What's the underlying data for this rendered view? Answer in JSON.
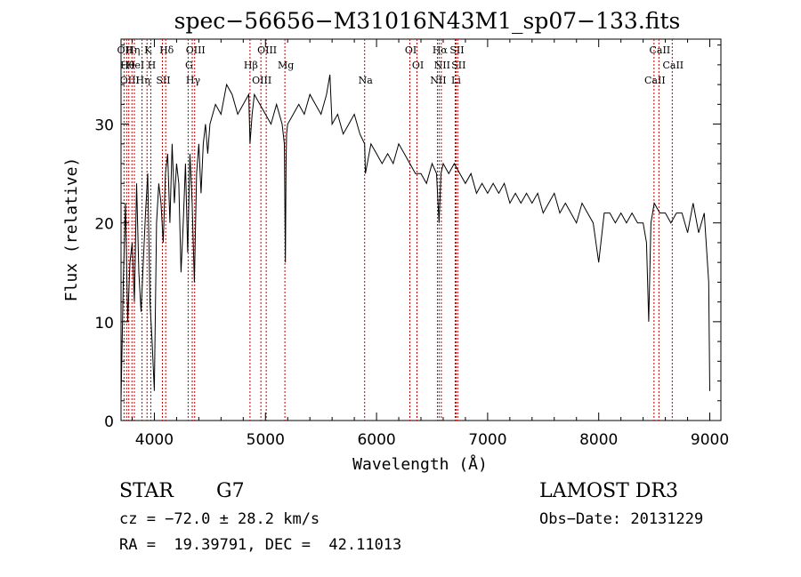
{
  "chart_data": {
    "type": "line",
    "title": "spec−56656−M31016N43M1_sp07−133.fits",
    "xlabel": "Wavelength (Å)",
    "ylabel": "Flux (relative)",
    "xlim": [
      3700,
      9100
    ],
    "ylim": [
      0,
      38.6
    ],
    "xticks": [
      4000,
      5000,
      6000,
      7000,
      8000,
      9000
    ],
    "yticks": [
      0,
      10,
      20,
      30
    ],
    "grid": false,
    "series": [
      {
        "name": "flux",
        "x": [
          3700,
          3720,
          3740,
          3760,
          3780,
          3800,
          3820,
          3840,
          3860,
          3880,
          3900,
          3920,
          3940,
          3960,
          3980,
          4000,
          4020,
          4040,
          4060,
          4080,
          4100,
          4120,
          4140,
          4160,
          4180,
          4200,
          4220,
          4240,
          4260,
          4280,
          4300,
          4320,
          4340,
          4360,
          4380,
          4400,
          4420,
          4440,
          4460,
          4480,
          4500,
          4550,
          4600,
          4650,
          4700,
          4750,
          4800,
          4850,
          4861,
          4880,
          4900,
          4950,
          5000,
          5050,
          5100,
          5150,
          5170,
          5175,
          5180,
          5185,
          5190,
          5200,
          5250,
          5300,
          5350,
          5400,
          5450,
          5500,
          5550,
          5580,
          5600,
          5650,
          5700,
          5750,
          5800,
          5850,
          5893,
          5900,
          5950,
          6000,
          6050,
          6100,
          6150,
          6200,
          6250,
          6300,
          6350,
          6400,
          6450,
          6500,
          6540,
          6563,
          6580,
          6600,
          6650,
          6700,
          6750,
          6800,
          6850,
          6900,
          6950,
          7000,
          7050,
          7100,
          7150,
          7200,
          7250,
          7300,
          7350,
          7400,
          7450,
          7500,
          7550,
          7600,
          7650,
          7700,
          7750,
          7800,
          7850,
          7900,
          7950,
          8000,
          8050,
          8100,
          8150,
          8200,
          8250,
          8300,
          8350,
          8400,
          8430,
          8450,
          8470,
          8500,
          8550,
          8600,
          8650,
          8700,
          8750,
          8800,
          8850,
          8900,
          8950,
          8990,
          9000
        ],
        "y": [
          2,
          14,
          22,
          10,
          16,
          18,
          12,
          24,
          15,
          11,
          16,
          21,
          25,
          12,
          8,
          3,
          20,
          24,
          22,
          18,
          25,
          27,
          20,
          28,
          22,
          26,
          24,
          15,
          20,
          26,
          17,
          27,
          22,
          14,
          25,
          28,
          23,
          28,
          30,
          27,
          30,
          32,
          31,
          34,
          33,
          31,
          32,
          33,
          28,
          31,
          33,
          32,
          31,
          30,
          32,
          30,
          28,
          22,
          16,
          26,
          29,
          30,
          31,
          32,
          31,
          33,
          32,
          31,
          33,
          35,
          30,
          31,
          29,
          30,
          31,
          29,
          28,
          25,
          28,
          27,
          26,
          27,
          26,
          28,
          27,
          26,
          25,
          25,
          24,
          26,
          25,
          20,
          25,
          26,
          25,
          26,
          25,
          24,
          25,
          23,
          24,
          23,
          24,
          23,
          24,
          22,
          23,
          22,
          23,
          22,
          23,
          21,
          22,
          23,
          21,
          22,
          21,
          20,
          22,
          21,
          20,
          16,
          21,
          21,
          20,
          21,
          20,
          21,
          20,
          20,
          18,
          10,
          20,
          22,
          21,
          21,
          20,
          21,
          21,
          19,
          22,
          19,
          21,
          14,
          3
        ]
      }
    ],
    "lines": [
      {
        "w": 3727,
        "label": "OII"
      },
      {
        "w": 3750,
        "label": "Hθ"
      },
      {
        "w": 3770,
        "label": "OIII"
      },
      {
        "w": 3798,
        "label": "Hη"
      },
      {
        "w": 3820,
        "label": "HeI"
      },
      {
        "w": 3889,
        "label": "Hη"
      },
      {
        "w": 3934,
        "label": "K"
      },
      {
        "w": 3968,
        "label": "H"
      },
      {
        "w": 4072,
        "label": "SII"
      },
      {
        "w": 4102,
        "label": "Hδ"
      },
      {
        "w": 4304,
        "label": "G"
      },
      {
        "w": 4341,
        "label": "Hγ"
      },
      {
        "w": 4363,
        "label": "OIII"
      },
      {
        "w": 4861,
        "label": "Hβ"
      },
      {
        "w": 4959,
        "label": "OIII"
      },
      {
        "w": 5007,
        "label": "OIII"
      },
      {
        "w": 5175,
        "label": "Mg"
      },
      {
        "w": 5893,
        "label": "Na"
      },
      {
        "w": 6300,
        "label": "OI"
      },
      {
        "w": 6364,
        "label": "OI"
      },
      {
        "w": 6548,
        "label": "NII"
      },
      {
        "w": 6563,
        "label": "Hα"
      },
      {
        "w": 6583,
        "label": "NII"
      },
      {
        "w": 6708,
        "label": "Li"
      },
      {
        "w": 6716,
        "label": "SII"
      },
      {
        "w": 6731,
        "label": "SII"
      },
      {
        "w": 8498,
        "label": "CaII"
      },
      {
        "w": 8542,
        "label": "CaII"
      },
      {
        "w": 8662,
        "label": "CaII"
      }
    ]
  },
  "info": {
    "class": "STAR",
    "subclass": "G7",
    "survey": "LAMOST DR3",
    "cz": "cz = −72.0 ± 28.2 km/s",
    "obs_date": "Obs−Date: 20131229",
    "radec": "RA =  19.39791, DEC =  42.11013"
  }
}
